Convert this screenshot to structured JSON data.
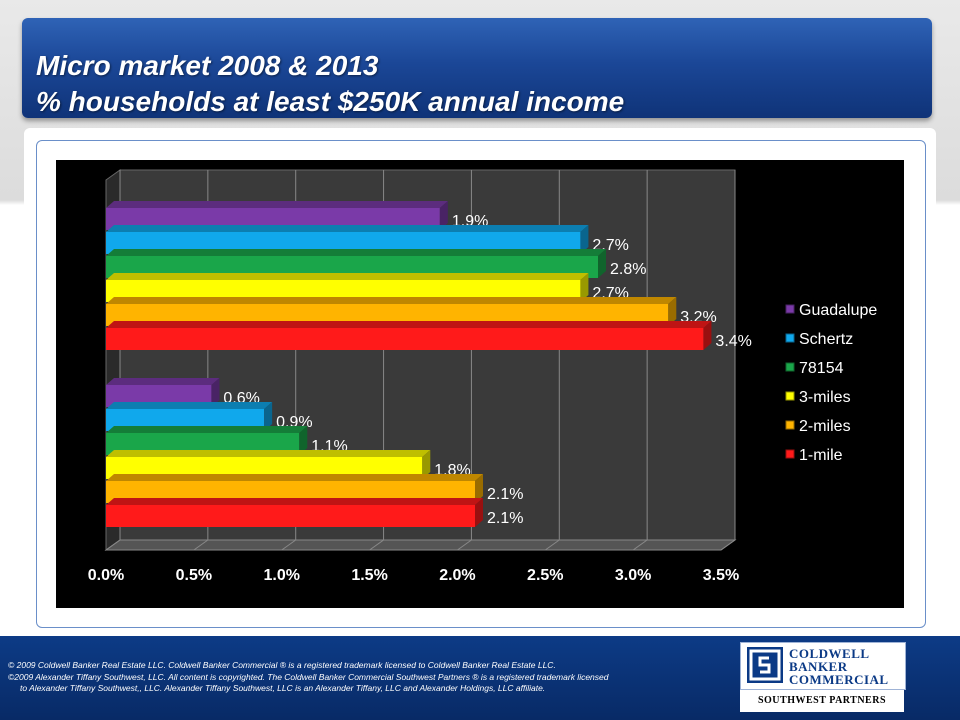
{
  "title": {
    "line1": "Micro market 2008 & 2013",
    "line2": "% households at least $250K annual income"
  },
  "chart_data": {
    "type": "bar",
    "orientation": "horizontal",
    "groups": [
      "",
      ""
    ],
    "series": [
      {
        "name": "Guadalupe",
        "color": "#7a3aa8",
        "values": [
          1.9,
          0.6
        ],
        "labels": [
          "1.9%",
          "0.6%"
        ]
      },
      {
        "name": "Schertz",
        "color": "#10a8ec",
        "values": [
          2.7,
          0.9
        ],
        "labels": [
          "2.7%",
          "0.9%"
        ]
      },
      {
        "name": "78154",
        "color": "#1aa64a",
        "values": [
          2.8,
          1.1
        ],
        "labels": [
          "2.8%",
          "1.1%"
        ]
      },
      {
        "name": "3-miles",
        "color": "#ffff00",
        "values": [
          2.7,
          1.8
        ],
        "labels": [
          "2.7%",
          "1.8%"
        ]
      },
      {
        "name": "2-miles",
        "color": "#ffb400",
        "values": [
          3.2,
          2.1
        ],
        "labels": [
          "3.2%",
          "2.1%"
        ]
      },
      {
        "name": "1-mile",
        "color": "#ff1a1a",
        "values": [
          3.4,
          2.1
        ],
        "labels": [
          "3.4%",
          "2.1%"
        ]
      }
    ],
    "xlim": [
      0,
      3.5
    ],
    "xticks": [
      "0.0%",
      "0.5%",
      "1.0%",
      "1.5%",
      "2.0%",
      "2.5%",
      "3.0%",
      "3.5%"
    ],
    "grid": true,
    "legend_position": "right"
  },
  "footer": {
    "line1": "© 2009 Coldwell Banker Real Estate LLC. Coldwell Banker Commercial ® is a registered trademark licensed to Coldwell Banker Real Estate LLC.",
    "line2": "©2009 Alexander Tiffany Southwest, LLC. All content is copyrighted. The Coldwell Banker Commercial Southwest Partners ® is a registered trademark licensed",
    "line3": "to Alexander Tiffany Southwest,, LLC.  Alexander Tiffany Southwest, LLC is an Alexander Tiffany, LLC and Alexander Holdings, LLC affiliate."
  },
  "logo": {
    "line1": "COLDWELL",
    "line2": "BANKER",
    "line3": "COMMERCIAL",
    "sub": "SOUTHWEST PARTNERS"
  }
}
